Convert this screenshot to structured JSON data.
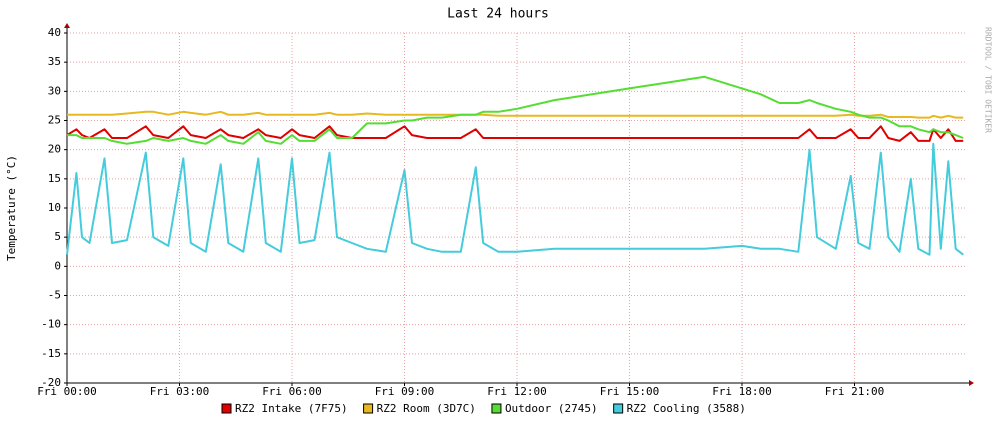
{
  "chart_data": {
    "type": "line",
    "title": "Last 24 hours",
    "ylabel": "Temperature (°C)",
    "watermark": "RRDTOOL / TOBI OETIKER",
    "x": [
      0,
      0.25,
      0.4,
      0.6,
      1.0,
      1.2,
      1.6,
      2.1,
      2.3,
      2.7,
      3.1,
      3.3,
      3.7,
      4.1,
      4.3,
      4.7,
      5.1,
      5.3,
      5.7,
      6.0,
      6.2,
      6.6,
      7.0,
      7.2,
      7.6,
      8,
      8.5,
      9.0,
      9.2,
      9.6,
      10,
      10.5,
      10.9,
      11.1,
      11.5,
      12,
      13,
      14,
      15,
      16,
      17,
      18,
      18.5,
      19,
      19.5,
      19.8,
      20,
      20.5,
      20.9,
      21.1,
      21.4,
      21.7,
      21.9,
      22.2,
      22.5,
      22.7,
      23.0,
      23.1,
      23.3,
      23.5,
      23.7,
      23.9
    ],
    "xlim": [
      0,
      24
    ],
    "xticks": [
      {
        "value": 0,
        "label": "Fri 00:00"
      },
      {
        "value": 3,
        "label": "Fri 03:00"
      },
      {
        "value": 6,
        "label": "Fri 06:00"
      },
      {
        "value": 9,
        "label": "Fri 09:00"
      },
      {
        "value": 12,
        "label": "Fri 12:00"
      },
      {
        "value": 15,
        "label": "Fri 15:00"
      },
      {
        "value": 18,
        "label": "Fri 18:00"
      },
      {
        "value": 21,
        "label": "Fri 21:00"
      }
    ],
    "ylim": [
      -20,
      40
    ],
    "yticks": [
      -20,
      -15,
      -10,
      -5,
      0,
      5,
      10,
      15,
      20,
      25,
      30,
      35,
      40
    ],
    "grid": true,
    "series": [
      {
        "name": "RZ2 Intake (7F75)",
        "color": "#e00000",
        "values": [
          22.5,
          23.5,
          22.5,
          22,
          23.5,
          22,
          22,
          24,
          22.5,
          22,
          24,
          22.5,
          22,
          23.5,
          22.5,
          22,
          23.5,
          22.5,
          22,
          23.5,
          22.5,
          22,
          24,
          22.5,
          22,
          22,
          22,
          24,
          22.5,
          22,
          22,
          22,
          23.5,
          22,
          22,
          22,
          22,
          22,
          22,
          22,
          22,
          22,
          22,
          22,
          22,
          23.5,
          22,
          22,
          23.5,
          22,
          22,
          24,
          22,
          21.5,
          23,
          21.5,
          21.5,
          23.5,
          22,
          23.5,
          21.5,
          21.5
        ]
      },
      {
        "name": "RZ2 Room (3D7C)",
        "color": "#e8b820",
        "values": [
          26,
          26,
          26,
          26,
          26,
          26,
          26.2,
          26.5,
          26.5,
          26,
          26.5,
          26.3,
          26,
          26.5,
          26,
          26,
          26.3,
          26,
          26,
          26,
          26,
          26,
          26.3,
          26,
          26,
          26.2,
          26,
          26,
          26,
          26,
          26,
          26,
          26,
          26,
          25.8,
          25.8,
          25.8,
          25.8,
          25.8,
          25.8,
          25.8,
          25.8,
          25.8,
          25.8,
          25.8,
          25.8,
          25.8,
          25.8,
          26,
          25.8,
          25.8,
          26,
          25.6,
          25.6,
          25.6,
          25.5,
          25.5,
          25.8,
          25.5,
          25.8,
          25.5,
          25.5
        ]
      },
      {
        "name": "Outdoor (2745)",
        "color": "#55dd33",
        "values": [
          22.5,
          22.5,
          22,
          22,
          22,
          21.5,
          21,
          21.5,
          22,
          21.5,
          22,
          21.5,
          21,
          22.5,
          21.5,
          21,
          23,
          21.5,
          21,
          22.5,
          21.5,
          21.5,
          23.5,
          22,
          22,
          24.5,
          24.5,
          25,
          25,
          25.5,
          25.5,
          26,
          26,
          26.5,
          26.5,
          27,
          28.5,
          29.5,
          30.5,
          31.5,
          32.5,
          30.5,
          29.5,
          28,
          28,
          28.5,
          28,
          27,
          26.5,
          26,
          25.5,
          25.5,
          25,
          24,
          24,
          23.5,
          23,
          23.5,
          23,
          23,
          22.5,
          22
        ]
      },
      {
        "name": "RZ2 Cooling (3588)",
        "color": "#44ccdd",
        "values": [
          2,
          16,
          5,
          4,
          18.5,
          4,
          4.5,
          19.5,
          5,
          3.5,
          18.5,
          4,
          2.5,
          17.5,
          4,
          2.5,
          18.5,
          4,
          2.5,
          18.5,
          4,
          4.5,
          19.5,
          5,
          4,
          3,
          2.5,
          16.5,
          4,
          3,
          2.5,
          2.5,
          17,
          4,
          2.5,
          2.5,
          3,
          3,
          3,
          3,
          3,
          3.5,
          3,
          3,
          2.5,
          20,
          5,
          3,
          15.5,
          4,
          3,
          19.5,
          5,
          2.5,
          15,
          3,
          2,
          21,
          3,
          18,
          3,
          2
        ]
      }
    ]
  }
}
